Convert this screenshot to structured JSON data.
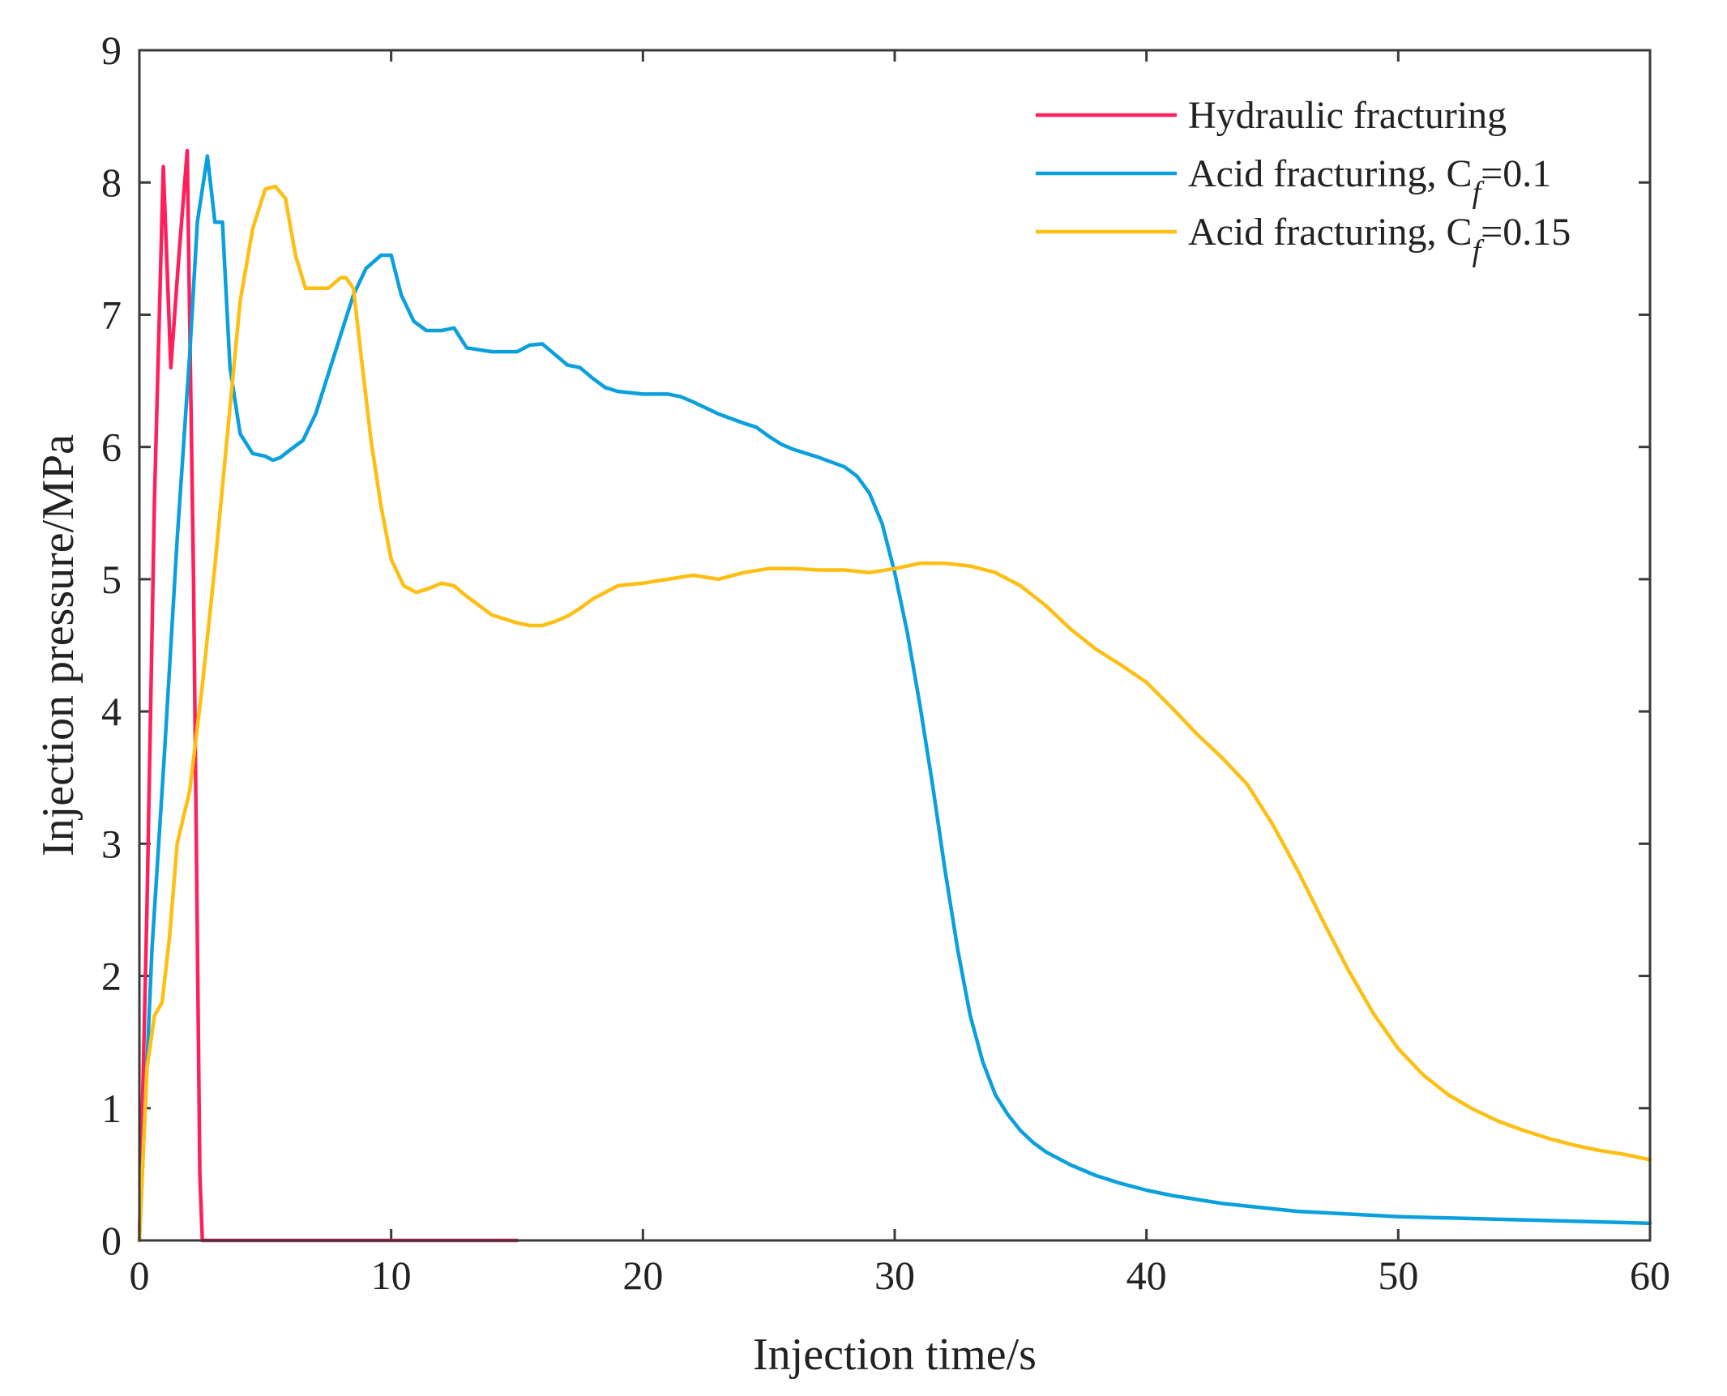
{
  "chart_data": {
    "type": "line",
    "xlabel": "Injection time/s",
    "ylabel": "Injection pressure/MPa",
    "xlim": [
      0,
      60
    ],
    "ylim": [
      0,
      9
    ],
    "xticks": [
      0,
      10,
      20,
      30,
      40,
      50,
      60
    ],
    "yticks": [
      0,
      1,
      2,
      3,
      4,
      5,
      6,
      7,
      8,
      9
    ],
    "grid": false,
    "legend_position": "top-right",
    "series": [
      {
        "name": "Hydraulic fracturing",
        "legend_prefix": "Hydraulic fracturing",
        "legend_sub": "",
        "legend_suffix": "",
        "color": "#ff1f5b",
        "x": [
          0,
          0.3,
          0.6,
          0.95,
          1.25,
          1.55,
          1.9,
          2.15,
          2.4,
          2.5,
          3,
          5,
          10,
          15
        ],
        "y": [
          0,
          2.5,
          5.6,
          8.12,
          6.6,
          7.4,
          8.24,
          5.0,
          0.5,
          0,
          0,
          0,
          0,
          0
        ]
      },
      {
        "name": "Acid fracturing, Cf=0.1",
        "legend_prefix": "Acid fracturing, C",
        "legend_sub": "f",
        "legend_suffix": "=0.1",
        "color": "#0aa0dd",
        "x": [
          0,
          0.5,
          1,
          1.5,
          2,
          2.3,
          2.7,
          3.0,
          3.3,
          3.6,
          4.0,
          4.5,
          5.0,
          5.3,
          5.6,
          6.0,
          6.5,
          7.0,
          7.5,
          8.0,
          8.5,
          9.0,
          9.6,
          10.0,
          10.4,
          10.9,
          11.4,
          12.0,
          12.5,
          13.0,
          14.0,
          15.0,
          15.5,
          16.0,
          16.5,
          17.0,
          17.5,
          18.0,
          18.5,
          19.0,
          20.0,
          20.5,
          21.0,
          21.5,
          22.0,
          23.0,
          24.0,
          24.5,
          25.0,
          25.5,
          26.0,
          27.0,
          28.0,
          28.5,
          29.0,
          29.5,
          30.0,
          30.5,
          31.0,
          31.5,
          32.0,
          32.5,
          33.0,
          33.5,
          34.0,
          34.5,
          35.0,
          35.5,
          36.0,
          37.0,
          38.0,
          39.0,
          40.0,
          41.0,
          42.0,
          43.0,
          44.0,
          46.0,
          48.0,
          50.0,
          52.0,
          54.0,
          56.0,
          58.0,
          60.0
        ],
        "y": [
          0,
          2.2,
          3.7,
          5.3,
          6.7,
          7.7,
          8.2,
          7.7,
          7.7,
          6.6,
          6.1,
          5.95,
          5.93,
          5.9,
          5.92,
          5.98,
          6.05,
          6.25,
          6.55,
          6.85,
          7.15,
          7.35,
          7.45,
          7.45,
          7.15,
          6.95,
          6.88,
          6.88,
          6.9,
          6.75,
          6.72,
          6.72,
          6.77,
          6.78,
          6.7,
          6.62,
          6.6,
          6.52,
          6.45,
          6.42,
          6.4,
          6.4,
          6.4,
          6.38,
          6.34,
          6.25,
          6.18,
          6.15,
          6.08,
          6.02,
          5.98,
          5.92,
          5.85,
          5.78,
          5.65,
          5.42,
          5.05,
          4.6,
          4.05,
          3.45,
          2.8,
          2.2,
          1.7,
          1.35,
          1.1,
          0.95,
          0.83,
          0.74,
          0.67,
          0.57,
          0.49,
          0.43,
          0.38,
          0.34,
          0.31,
          0.28,
          0.26,
          0.22,
          0.2,
          0.18,
          0.17,
          0.16,
          0.15,
          0.14,
          0.13
        ]
      },
      {
        "name": "Acid fracturing, Cf=0.15",
        "legend_prefix": "Acid fracturing, C",
        "legend_sub": "f",
        "legend_suffix": "=0.15",
        "color": "#ffbe12",
        "x": [
          0,
          0.3,
          0.6,
          0.9,
          1.2,
          1.5,
          2.0,
          2.5,
          3.0,
          3.5,
          4.0,
          4.5,
          5.0,
          5.4,
          5.8,
          6.2,
          6.6,
          7.0,
          7.5,
          8.0,
          8.2,
          8.5,
          8.8,
          9.2,
          9.6,
          10.0,
          10.5,
          11.0,
          11.5,
          12.0,
          12.5,
          13.0,
          13.5,
          14.0,
          15.0,
          15.5,
          16.0,
          16.5,
          17.0,
          17.5,
          18.0,
          18.5,
          19.0,
          20.0,
          21.0,
          22.0,
          23.0,
          24.0,
          25.0,
          26.0,
          27.0,
          28.0,
          29.0,
          30.0,
          31.0,
          32.0,
          33.0,
          34.0,
          35.0,
          36.0,
          37.0,
          38.0,
          39.0,
          40.0,
          41.0,
          42.0,
          43.0,
          44.0,
          45.0,
          46.0,
          47.0,
          48.0,
          49.0,
          50.0,
          51.0,
          52.0,
          53.0,
          54.0,
          55.0,
          56.0,
          57.0,
          58.0,
          59.0,
          60.0
        ],
        "y": [
          0,
          1.3,
          1.7,
          1.8,
          2.3,
          3.0,
          3.4,
          4.2,
          5.1,
          6.1,
          7.1,
          7.65,
          7.95,
          7.97,
          7.88,
          7.45,
          7.2,
          7.2,
          7.2,
          7.28,
          7.28,
          7.2,
          6.7,
          6.05,
          5.55,
          5.15,
          4.95,
          4.9,
          4.93,
          4.97,
          4.95,
          4.87,
          4.8,
          4.73,
          4.67,
          4.65,
          4.65,
          4.68,
          4.72,
          4.78,
          4.85,
          4.9,
          4.95,
          4.97,
          5.0,
          5.03,
          5.0,
          5.05,
          5.08,
          5.08,
          5.07,
          5.07,
          5.05,
          5.08,
          5.12,
          5.12,
          5.1,
          5.05,
          4.95,
          4.8,
          4.62,
          4.47,
          4.35,
          4.22,
          4.03,
          3.83,
          3.65,
          3.45,
          3.15,
          2.8,
          2.42,
          2.05,
          1.72,
          1.45,
          1.25,
          1.1,
          0.99,
          0.9,
          0.83,
          0.77,
          0.72,
          0.68,
          0.65,
          0.61
        ]
      }
    ]
  }
}
